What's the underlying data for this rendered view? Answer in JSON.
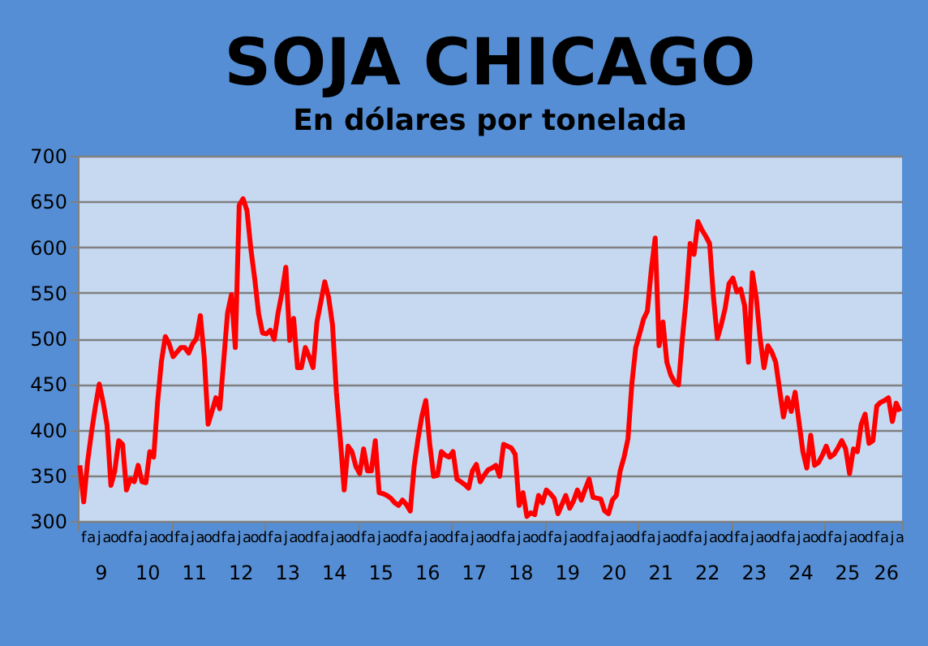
{
  "chart_data": {
    "type": "line",
    "title": "SOJA CHICAGO",
    "subtitle": "En dólares por tonelada",
    "categories": [
      null,
      "f",
      null,
      "a",
      null,
      "j",
      null,
      "a",
      null,
      "o",
      null,
      "d",
      null,
      "f",
      null,
      "a",
      null,
      "j",
      null,
      "a",
      null,
      "o",
      null,
      "d",
      null,
      "f",
      null,
      "a",
      null,
      "j",
      null,
      "a",
      null,
      "o",
      null,
      "d",
      null,
      "f",
      null,
      "a",
      null,
      "j",
      null,
      "a",
      null,
      "o",
      null,
      "d",
      null,
      "f",
      null,
      "a",
      null,
      "j",
      null,
      "a",
      null,
      "o",
      null,
      "d",
      null,
      "f",
      null,
      "a",
      null,
      "j",
      null,
      "a",
      null,
      "o",
      null,
      "d",
      null,
      "f",
      null,
      "a",
      null,
      "j",
      null,
      "a",
      null,
      "o",
      null,
      "d",
      null,
      "f",
      null,
      "a",
      null,
      "j",
      null,
      "a",
      null,
      "o",
      null,
      "d",
      null,
      "f",
      null,
      "a",
      null,
      "j",
      null,
      "a",
      null,
      "o",
      null,
      "d",
      null,
      "f",
      null,
      "a",
      null,
      "j",
      null,
      "a",
      null,
      "o",
      null,
      "d",
      null,
      "f",
      null,
      "a",
      null,
      "j",
      null,
      "a",
      null,
      "o",
      null,
      "d",
      null,
      "f",
      null,
      "a",
      null,
      "j",
      null,
      "a",
      null,
      "o",
      null,
      "d",
      null,
      "f",
      null,
      "a",
      null,
      "j",
      null,
      "a",
      null,
      "o",
      null,
      "d",
      null,
      "f",
      null,
      "a",
      null,
      "j",
      null,
      "a",
      null,
      "o",
      null,
      "d",
      null,
      "f",
      null,
      "a",
      null,
      "j",
      null,
      "a",
      null,
      "o",
      null,
      "d",
      null,
      "f",
      null,
      "a",
      null,
      "j",
      null,
      "a",
      null,
      "o",
      null,
      "d",
      null,
      "f",
      null,
      "a",
      null,
      "j",
      null,
      "a",
      null,
      "o",
      null,
      "d",
      null,
      "f",
      null,
      "a",
      null,
      "j",
      null,
      "a"
    ],
    "series": [
      {
        "color": "#ff0000",
        "values": [
          361,
          321,
          365,
          397,
          425,
          450,
          430,
          405,
          339,
          355,
          388,
          384,
          334,
          346,
          343,
          361,
          343,
          342,
          376,
          370,
          430,
          475,
          502,
          494,
          480,
          485,
          490,
          490,
          484,
          494,
          500,
          525,
          480,
          406,
          420,
          435,
          423,
          475,
          528,
          548,
          490,
          646,
          653,
          640,
          598,
          565,
          527,
          506,
          505,
          509,
          499,
          528,
          550,
          578,
          498,
          522,
          468,
          468,
          490,
          480,
          468,
          518,
          540,
          562,
          545,
          515,
          441,
          390,
          334,
          382,
          376,
          360,
          352,
          379,
          355,
          355,
          388,
          331,
          330,
          328,
          325,
          320,
          317,
          323,
          318,
          311,
          360,
          390,
          415,
          432,
          385,
          349,
          350,
          376,
          372,
          370,
          376,
          346,
          343,
          340,
          336,
          355,
          362,
          343,
          350,
          356,
          358,
          361,
          349,
          384,
          382,
          380,
          373,
          317,
          331,
          305,
          309,
          307,
          328,
          320,
          334,
          330,
          325,
          308,
          318,
          328,
          314,
          322,
          334,
          323,
          335,
          346,
          326,
          325,
          324,
          311,
          308,
          323,
          328,
          355,
          370,
          390,
          450,
          490,
          505,
          521,
          530,
          575,
          610,
          492,
          518,
          474,
          460,
          452,
          449,
          500,
          545,
          604,
          592,
          628,
          619,
          612,
          604,
          545,
          500,
          515,
          533,
          560,
          566,
          551,
          554,
          536,
          474,
          572,
          545,
          500,
          468,
          492,
          485,
          474,
          444,
          414,
          435,
          420,
          441,
          408,
          376,
          358,
          394,
          361,
          364,
          372,
          382,
          370,
          373,
          380,
          388,
          379,
          352,
          379,
          376,
          406,
          417,
          385,
          388,
          426,
          430,
          432,
          435,
          409,
          429,
          420
        ]
      }
    ],
    "ylim": [
      300,
      700
    ],
    "yticks": [
      300,
      350,
      400,
      450,
      500,
      550,
      600,
      650,
      700
    ],
    "grid": "y",
    "line_style": "solid",
    "annotations": [
      "9",
      "10",
      "11",
      "12",
      "13",
      "14",
      "15",
      "16",
      "17",
      "18",
      "19",
      "20",
      "21",
      "22",
      "23",
      "24",
      "25",
      "26"
    ]
  }
}
